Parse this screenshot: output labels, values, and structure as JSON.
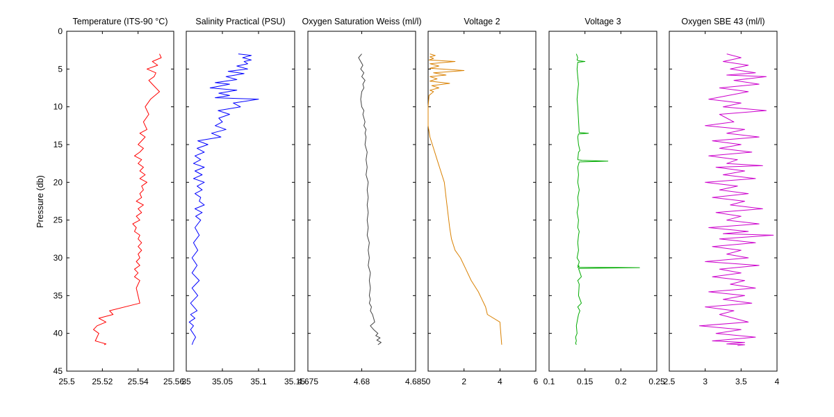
{
  "ylabel": "Pressure (db)",
  "y_ticks": [
    "0",
    "5",
    "10",
    "15",
    "20",
    "25",
    "30",
    "35",
    "40",
    "45"
  ],
  "chart_data": [
    {
      "type": "line",
      "title": "Temperature (ITS-90 °C)",
      "xlabel": "",
      "ylabel": "Pressure (db)",
      "xlim": [
        25.5,
        25.56
      ],
      "ylim": [
        0,
        45
      ],
      "y_reversed": true,
      "x_ticks": [
        "25.5",
        "25.52",
        "25.54",
        "25.56"
      ],
      "x_tick_values": [
        25.5,
        25.52,
        25.54,
        25.56
      ],
      "color": "#ff0000",
      "series": [
        {
          "x": [
            25.552,
            25.553,
            25.548,
            25.551,
            25.545,
            25.55,
            25.549,
            25.546,
            25.548,
            25.552,
            25.547,
            25.544,
            25.546,
            25.543,
            25.544,
            25.545,
            25.541,
            25.544,
            25.542,
            25.54,
            25.543,
            25.541,
            25.538,
            25.542,
            25.54,
            25.543,
            25.541,
            25.544,
            25.541,
            25.545,
            25.542,
            25.543,
            25.541,
            25.542,
            25.539,
            25.543,
            25.54,
            25.542,
            25.539,
            25.541,
            25.537,
            25.539,
            25.538,
            25.541,
            25.54,
            25.542,
            25.54,
            25.542,
            25.54,
            25.541,
            25.539,
            25.541,
            25.538,
            25.54,
            25.538,
            25.541,
            25.539,
            25.541,
            25.524,
            25.526,
            25.518,
            25.522,
            25.517,
            25.515,
            25.518,
            25.517,
            25.516,
            25.519,
            25.522,
            25.521
          ],
          "y": [
            3.0,
            3.5,
            4.0,
            4.5,
            5.0,
            5.5,
            6.0,
            6.5,
            7.0,
            8.0,
            9.0,
            10.0,
            11.0,
            12.0,
            12.5,
            13.0,
            13.5,
            14.0,
            14.5,
            15.0,
            15.5,
            16.0,
            16.5,
            17.0,
            17.5,
            18.0,
            18.5,
            19.0,
            19.5,
            20.0,
            20.5,
            21.0,
            21.5,
            22.0,
            22.5,
            23.0,
            23.5,
            24.0,
            24.5,
            25.0,
            25.5,
            26.0,
            26.5,
            27.0,
            27.5,
            28.0,
            28.5,
            29.0,
            29.5,
            30.0,
            30.5,
            31.0,
            31.5,
            32.0,
            32.5,
            33.0,
            34.0,
            36.0,
            37.0,
            37.5,
            38.0,
            38.5,
            39.0,
            39.5,
            40.0,
            40.5,
            41.0,
            41.2,
            41.4,
            41.5
          ]
        }
      ]
    },
    {
      "type": "line",
      "title": "Salinity Practical (PSU)",
      "xlabel": "",
      "ylabel": "",
      "xlim": [
        35.0,
        35.15
      ],
      "ylim": [
        0,
        45
      ],
      "y_reversed": true,
      "x_ticks": [
        "35",
        "35.05",
        "35.1",
        "35.15"
      ],
      "x_tick_values": [
        35.0,
        35.05,
        35.1,
        35.15
      ],
      "color": "#0000ff",
      "series": [
        {
          "x": [
            35.072,
            35.09,
            35.078,
            35.09,
            35.08,
            35.085,
            35.07,
            35.085,
            35.058,
            35.08,
            35.055,
            35.07,
            35.04,
            35.06,
            35.033,
            35.07,
            35.045,
            35.06,
            35.04,
            35.1,
            35.065,
            35.075,
            35.044,
            35.06,
            35.045,
            35.05,
            35.04,
            35.055,
            35.035,
            35.048,
            35.016,
            35.03,
            35.015,
            35.025,
            35.012,
            35.02,
            35.01,
            35.025,
            35.012,
            35.022,
            35.01,
            35.025,
            35.015,
            35.022,
            35.012,
            35.02,
            35.018,
            35.025,
            35.012,
            35.022,
            35.013,
            35.02,
            35.012,
            35.018,
            35.01,
            35.016,
            35.008,
            35.015,
            35.008,
            35.018,
            35.008,
            35.016,
            35.006,
            35.015,
            35.006,
            35.012,
            35.004,
            35.01,
            35.006,
            35.013,
            35.01,
            35.008
          ],
          "y": [
            3.0,
            3.2,
            3.5,
            3.8,
            4.0,
            4.3,
            4.6,
            5.0,
            5.3,
            5.6,
            6.0,
            6.4,
            6.8,
            7.0,
            7.5,
            7.8,
            8.2,
            8.5,
            8.8,
            9.0,
            9.5,
            10.0,
            10.5,
            11.0,
            11.5,
            12.0,
            12.5,
            13.0,
            13.5,
            14.0,
            14.5,
            15.0,
            15.5,
            16.0,
            16.5,
            17.0,
            17.5,
            18.0,
            18.5,
            19.0,
            19.5,
            20.0,
            20.5,
            21.0,
            21.5,
            22.0,
            22.5,
            23.0,
            23.5,
            24.0,
            24.5,
            25.0,
            26.0,
            27.0,
            28.0,
            29.0,
            30.0,
            31.0,
            32.0,
            33.0,
            34.0,
            35.0,
            36.0,
            37.0,
            37.5,
            38.0,
            38.5,
            39.0,
            39.5,
            40.5,
            41.0,
            41.5
          ]
        }
      ]
    },
    {
      "type": "line",
      "title": "Oxygen Saturation Weiss (ml/l)",
      "xlabel": "",
      "ylabel": "",
      "xlim": [
        4.675,
        4.685
      ],
      "ylim": [
        0,
        45
      ],
      "y_reversed": true,
      "x_ticks": [
        "4.675",
        "4.68",
        "4.685"
      ],
      "x_tick_values": [
        4.675,
        4.68,
        4.685
      ],
      "color": "#404040",
      "series": [
        {
          "x": [
            4.68,
            4.6797,
            4.6799,
            4.6801,
            4.6799,
            4.6802,
            4.68,
            4.6803,
            4.6801,
            4.6802,
            4.68,
            4.6799,
            4.68,
            4.6802,
            4.6801,
            4.6803,
            4.6802,
            4.6804,
            4.6803,
            4.6804,
            4.6803,
            4.6805,
            4.6804,
            4.6805,
            4.6804,
            4.6806,
            4.6805,
            4.6806,
            4.6805,
            4.6806,
            4.6805,
            4.6806,
            4.6805,
            4.6807,
            4.6806,
            4.6807,
            4.6806,
            4.6808,
            4.6807,
            4.6808,
            4.6807,
            4.6808,
            4.6807,
            4.6809,
            4.6808,
            4.681,
            4.6811,
            4.6812,
            4.6808,
            4.6811,
            4.6815,
            4.6813,
            4.6817,
            4.6814,
            4.6818,
            4.6815
          ],
          "y": [
            3.0,
            3.5,
            4.0,
            4.5,
            5.0,
            5.5,
            6.0,
            6.5,
            7.0,
            7.5,
            8.0,
            9.0,
            10.0,
            10.5,
            11.0,
            12.0,
            12.5,
            13.0,
            13.5,
            14.0,
            15.0,
            16.0,
            17.0,
            18.0,
            19.0,
            20.0,
            21.0,
            22.0,
            23.0,
            24.0,
            25.0,
            26.0,
            27.0,
            28.0,
            29.0,
            30.0,
            31.0,
            32.0,
            33.0,
            34.0,
            35.0,
            35.5,
            36.0,
            36.5,
            37.0,
            37.5,
            38.0,
            38.5,
            39.0,
            39.5,
            40.0,
            40.3,
            40.6,
            40.9,
            41.2,
            41.5
          ]
        }
      ]
    },
    {
      "type": "line",
      "title": "Voltage 2",
      "xlabel": "",
      "ylabel": "",
      "xlim": [
        0,
        6
      ],
      "ylim": [
        0,
        45
      ],
      "y_reversed": true,
      "x_ticks": [
        "0",
        "2",
        "4",
        "6"
      ],
      "x_tick_values": [
        0,
        2,
        4,
        6
      ],
      "color": "#d98000",
      "series": [
        {
          "x": [
            0.1,
            0.4,
            0.1,
            0.3,
            0.05,
            1.5,
            0.1,
            0.6,
            0.1,
            2.0,
            0.3,
            1.0,
            0.1,
            0.5,
            0.1,
            1.2,
            0.2,
            0.6,
            0.1,
            0.3,
            0.05,
            0.0,
            0.0,
            0.0,
            0.1,
            0.3,
            0.5,
            0.7,
            0.9,
            1.0,
            1.1,
            1.2,
            1.3,
            1.5,
            1.8,
            2.1,
            2.4,
            2.8,
            3.0,
            3.2,
            3.3,
            4.0,
            4.1
          ],
          "y": [
            3.0,
            3.2,
            3.4,
            3.6,
            3.8,
            4.0,
            4.3,
            4.6,
            4.9,
            5.2,
            5.5,
            5.8,
            6.0,
            6.3,
            6.6,
            6.9,
            7.2,
            7.5,
            7.8,
            8.0,
            8.5,
            10.0,
            11.5,
            12.5,
            14.0,
            15.5,
            17.0,
            18.5,
            20.0,
            22.0,
            24.0,
            26.0,
            27.5,
            29.0,
            30.0,
            31.5,
            33.0,
            34.5,
            35.5,
            36.5,
            37.5,
            38.5,
            41.5
          ]
        }
      ]
    },
    {
      "type": "line",
      "title": "Voltage 3",
      "xlabel": "",
      "ylabel": "",
      "xlim": [
        0.1,
        0.25
      ],
      "ylim": [
        0,
        45
      ],
      "y_reversed": true,
      "x_ticks": [
        "0.1",
        "0.15",
        "0.2",
        "0.25"
      ],
      "x_tick_values": [
        0.1,
        0.15,
        0.2,
        0.25
      ],
      "color": "#00aa00",
      "series": [
        {
          "x": [
            0.138,
            0.14,
            0.139,
            0.141,
            0.15,
            0.14,
            0.139,
            0.14,
            0.141,
            0.14,
            0.139,
            0.14,
            0.142,
            0.155,
            0.141,
            0.14,
            0.141,
            0.143,
            0.141,
            0.14,
            0.146,
            0.182,
            0.142,
            0.14,
            0.141,
            0.14,
            0.142,
            0.14,
            0.141,
            0.139,
            0.141,
            0.14,
            0.142,
            0.141,
            0.14,
            0.141,
            0.139,
            0.142,
            0.141,
            0.14,
            0.142,
            0.14,
            0.14,
            0.226,
            0.141,
            0.145,
            0.14,
            0.142,
            0.141,
            0.145,
            0.14,
            0.143,
            0.141,
            0.14,
            0.138,
            0.139,
            0.137,
            0.138,
            0.137,
            0.138
          ],
          "y": [
            3.0,
            3.5,
            3.8,
            3.9,
            4.0,
            4.1,
            5.0,
            6.0,
            7.0,
            8.0,
            9.0,
            10.0,
            13.4,
            13.5,
            13.6,
            14.0,
            15.0,
            15.8,
            16.0,
            17.0,
            17.1,
            17.2,
            17.3,
            18.0,
            19.0,
            20.0,
            21.0,
            22.0,
            23.0,
            24.0,
            25.0,
            26.0,
            26.5,
            27.0,
            28.0,
            29.0,
            30.0,
            30.5,
            30.9,
            31.0,
            31.1,
            31.2,
            31.25,
            31.3,
            31.4,
            32.5,
            33.0,
            33.5,
            35.0,
            36.0,
            36.5,
            37.0,
            37.5,
            38.0,
            39.0,
            40.0,
            40.5,
            41.0,
            41.3,
            41.5
          ]
        }
      ]
    },
    {
      "type": "line",
      "title": "Oxygen SBE 43 (ml/l)",
      "xlabel": "",
      "ylabel": "",
      "xlim": [
        2.5,
        4.0
      ],
      "ylim": [
        0,
        45
      ],
      "y_reversed": true,
      "x_ticks": [
        "2.5",
        "3",
        "3.5",
        "4"
      ],
      "x_tick_values": [
        2.5,
        3.0,
        3.5,
        4.0
      ],
      "color": "#cc00cc",
      "series": [
        {
          "x": [
            3.3,
            3.5,
            3.25,
            3.6,
            3.35,
            3.7,
            3.3,
            3.85,
            3.4,
            3.75,
            3.2,
            3.6,
            3.05,
            3.5,
            3.25,
            3.85,
            3.2,
            3.4,
            3.0,
            3.55,
            3.3,
            3.75,
            3.1,
            3.5,
            3.2,
            3.65,
            3.05,
            3.45,
            3.3,
            3.8,
            3.15,
            3.55,
            3.25,
            3.7,
            3.0,
            3.45,
            3.2,
            3.6,
            3.1,
            3.55,
            3.35,
            3.8,
            3.15,
            3.5,
            3.3,
            3.75,
            3.05,
            3.6,
            3.25,
            3.95,
            3.2,
            3.7,
            3.1,
            3.5,
            3.3,
            3.6,
            3.0,
            3.75,
            3.2,
            3.5,
            3.1,
            3.55,
            3.35,
            3.7,
            3.05,
            3.55,
            3.25,
            3.65,
            3.0,
            3.4,
            3.2,
            3.6,
            2.92,
            3.5,
            3.15,
            3.7,
            3.1,
            3.55,
            3.3,
            3.55,
            3.45
          ],
          "y": [
            3.0,
            3.5,
            4.0,
            4.5,
            5.0,
            5.5,
            5.8,
            6.0,
            6.5,
            7.0,
            7.5,
            8.0,
            9.0,
            9.5,
            10.0,
            10.5,
            11.0,
            12.0,
            12.5,
            13.0,
            13.5,
            14.0,
            14.5,
            15.0,
            15.5,
            16.0,
            16.5,
            17.0,
            17.5,
            17.8,
            18.0,
            18.5,
            19.0,
            19.5,
            20.0,
            20.5,
            21.0,
            21.5,
            22.0,
            22.5,
            23.0,
            23.5,
            24.0,
            24.5,
            25.0,
            25.5,
            26.0,
            26.5,
            26.8,
            27.0,
            27.5,
            28.0,
            28.5,
            29.0,
            29.5,
            30.0,
            30.5,
            31.0,
            31.5,
            32.0,
            32.5,
            33.0,
            33.5,
            34.0,
            34.5,
            35.0,
            35.5,
            36.0,
            36.5,
            37.0,
            37.5,
            38.5,
            39.0,
            39.5,
            40.0,
            40.5,
            41.0,
            41.2,
            41.4,
            41.5,
            41.6
          ]
        }
      ]
    }
  ]
}
